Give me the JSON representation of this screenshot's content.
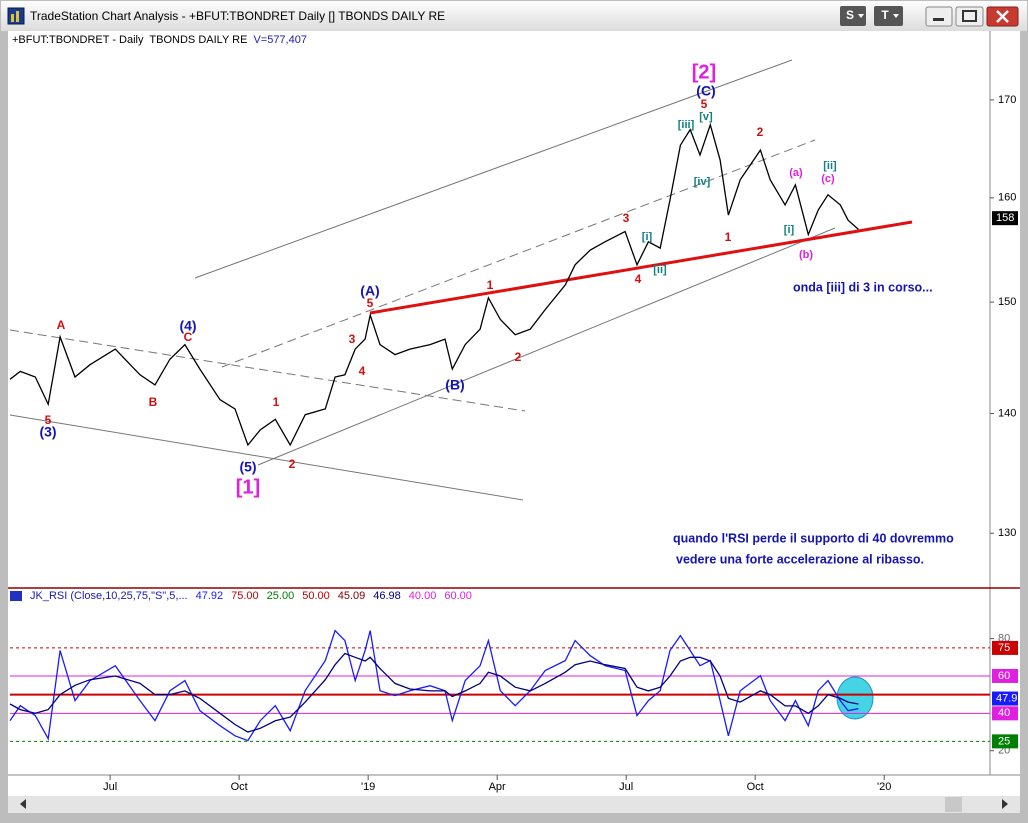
{
  "window": {
    "title": "TradeStation Chart Analysis - +BFUT:TBONDRET Daily [] TBONDS DAILY RE",
    "buttons": [
      "S",
      "T"
    ]
  },
  "chart_data": [
    {
      "type": "line",
      "title": "+BFUT:TBONDRET - Daily  TBONDS DAILY RE",
      "subtitle": "V=577,407",
      "color": "#000000",
      "x": [
        2018.306,
        2018.326,
        2018.355,
        2018.38,
        2018.403,
        2018.432,
        2018.461,
        2018.51,
        2018.558,
        2018.587,
        2018.616,
        2018.645,
        2018.674,
        2018.713,
        2018.742,
        2018.767,
        2018.791,
        2018.82,
        2018.849,
        2018.878,
        2018.917,
        2018.936,
        2018.955,
        2018.975,
        2018.994,
        2019.004,
        2019.023,
        2019.052,
        2019.081,
        2019.12,
        2019.149,
        2019.163,
        2019.188,
        2019.217,
        2019.233,
        2019.256,
        2019.285,
        2019.314,
        2019.343,
        2019.382,
        2019.401,
        2019.43,
        2019.459,
        2019.498,
        2019.521,
        2019.543,
        2019.566,
        2019.585,
        2019.605,
        2019.624,
        2019.643,
        2019.663,
        2019.682,
        2019.698,
        2019.721,
        2019.76,
        2019.779,
        2019.808,
        2019.828,
        2019.853,
        2019.872,
        2019.891,
        2019.915,
        2019.93,
        2019.95
      ],
      "values": [
        143.0,
        143.7,
        143.2,
        140.8,
        146.8,
        143.2,
        144.3,
        145.7,
        143.4,
        142.5,
        144.8,
        146.1,
        143.9,
        141.2,
        140.4,
        137.3,
        138.6,
        139.5,
        137.3,
        139.9,
        140.4,
        143.2,
        143.4,
        145.7,
        146.6,
        148.8,
        146.1,
        145.2,
        145.7,
        146.1,
        146.6,
        143.9,
        146.1,
        147.5,
        150.4,
        148.4,
        147.0,
        147.5,
        149.3,
        151.6,
        153.5,
        154.9,
        155.7,
        156.7,
        153.5,
        155.7,
        155.1,
        159.8,
        165.3,
        166.9,
        164.3,
        167.4,
        163.8,
        158.3,
        161.8,
        164.8,
        161.8,
        159.3,
        161.3,
        156.4,
        158.8,
        160.3,
        159.3,
        157.8,
        156.9
      ],
      "xlim": [
        2018.306,
        2020.205
      ],
      "ylim": [
        125.9,
        177.3
      ],
      "yticks": [
        130,
        140,
        150,
        160,
        170
      ],
      "log_scale": true,
      "last_price": 158,
      "wave_labels": [
        {
          "text": "[2]",
          "color": "#e020e0"
        },
        {
          "text": "(C)",
          "color": "#1414b4"
        },
        {
          "text": "5",
          "color": "#d01010"
        },
        {
          "text": "[v]",
          "color": "#108080"
        },
        {
          "text": "[iii]",
          "color": "#108080"
        },
        {
          "text": "[iv]",
          "color": "#108080"
        },
        {
          "text": "2",
          "color": "#d01010"
        },
        {
          "text": "(a)",
          "color": "#e020e0"
        },
        {
          "text": "[ii]",
          "color": "#108080"
        },
        {
          "text": "(c)",
          "color": "#e020e0"
        },
        {
          "text": "[i]",
          "color": "#108080"
        },
        {
          "text": "(b)",
          "color": "#e020e0"
        },
        {
          "text": "1",
          "color": "#d01010"
        },
        {
          "text": "3",
          "color": "#d01010"
        },
        {
          "text": "[i]",
          "color": "#108080"
        },
        {
          "text": "[ii]",
          "color": "#108080"
        },
        {
          "text": "4",
          "color": "#d01010"
        },
        {
          "text": "1",
          "color": "#d01010"
        },
        {
          "text": "2",
          "color": "#d01010"
        },
        {
          "text": "(A)",
          "color": "#1414b4"
        },
        {
          "text": "5",
          "color": "#d01010"
        },
        {
          "text": "3",
          "color": "#d01010"
        },
        {
          "text": "4",
          "color": "#d01010"
        },
        {
          "text": "(B)",
          "color": "#1414b4"
        },
        {
          "text": "(4)",
          "color": "#1414b4"
        },
        {
          "text": "C",
          "color": "#d01010"
        },
        {
          "text": "A",
          "color": "#d01010"
        },
        {
          "text": "B",
          "color": "#d01010"
        },
        {
          "text": "5",
          "color": "#d01010"
        },
        {
          "text": "(3)",
          "color": "#1414b4"
        },
        {
          "text": "1",
          "color": "#d01010"
        },
        {
          "text": "(5)",
          "color": "#1414b4"
        },
        {
          "text": "2",
          "color": "#d01010"
        },
        {
          "text": "[1]",
          "color": "#e020e0"
        }
      ],
      "notes": [
        "onda [iii] di 3 in corso...",
        "quando l'RSI perde il supporto di 40 dovremmo",
        "vedere una forte accelerazione al ribasso."
      ]
    },
    {
      "type": "line",
      "title": "JK_RSI (Close,10,25,75,\"S\",5,...",
      "readouts": [
        {
          "value": 47.92,
          "color": "#1a1aff"
        },
        {
          "value": 75,
          "label": "75.00",
          "color": "#cc0000",
          "level": "dashed",
          "axis_box": true
        },
        {
          "value": 25,
          "label": "25.00",
          "color": "#008000",
          "level": "dashed",
          "axis_box": true
        },
        {
          "value": 50,
          "label": "50.00",
          "color": "#cc0000",
          "level": "thick"
        },
        {
          "value": 45.09,
          "color": "#800000"
        },
        {
          "value": 46.98,
          "color": "#000080"
        },
        {
          "value": 40,
          "label": "40.00",
          "color": "#e020e0",
          "level": "solid",
          "axis_box": true
        },
        {
          "value": 60,
          "label": "60.00",
          "color": "#e020e0",
          "level": "solid",
          "axis_box": true
        }
      ],
      "x": [
        2018.306,
        2018.326,
        2018.355,
        2018.38,
        2018.403,
        2018.432,
        2018.461,
        2018.51,
        2018.558,
        2018.587,
        2018.616,
        2018.645,
        2018.674,
        2018.713,
        2018.742,
        2018.767,
        2018.791,
        2018.82,
        2018.849,
        2018.878,
        2018.917,
        2018.936,
        2018.955,
        2018.975,
        2018.994,
        2019.004,
        2019.023,
        2019.052,
        2019.081,
        2019.12,
        2019.149,
        2019.163,
        2019.188,
        2019.217,
        2019.233,
        2019.256,
        2019.285,
        2019.314,
        2019.343,
        2019.382,
        2019.401,
        2019.43,
        2019.459,
        2019.498,
        2019.521,
        2019.543,
        2019.566,
        2019.585,
        2019.605,
        2019.624,
        2019.643,
        2019.663,
        2019.682,
        2019.698,
        2019.721,
        2019.76,
        2019.779,
        2019.808,
        2019.828,
        2019.853,
        2019.872,
        2019.891,
        2019.915,
        2019.93,
        2019.95
      ],
      "series": [
        {
          "color": "#1a1aff",
          "values": [
            36.1,
            44.1,
            38.8,
            26.4,
            73.6,
            46.8,
            57.5,
            65.5,
            46.8,
            36.1,
            52.1,
            57.5,
            41.4,
            33.4,
            28.0,
            25.4,
            36.1,
            44.1,
            30.7,
            52.1,
            68.2,
            84.3,
            78.9,
            57.5,
            73.6,
            84.3,
            52.1,
            49.5,
            52.1,
            54.8,
            52.1,
            36.1,
            57.5,
            65.5,
            78.9,
            52.1,
            44.1,
            52.1,
            62.9,
            68.2,
            78.9,
            70.9,
            65.5,
            62.9,
            38.8,
            46.8,
            52.1,
            73.6,
            81.6,
            73.6,
            65.5,
            68.2,
            46.8,
            28.0,
            52.1,
            60.2,
            46.8,
            36.1,
            46.8,
            33.4,
            52.1,
            57.5,
            46.8,
            41.4,
            42.5
          ]
        },
        {
          "color": "#000080",
          "values": [
            45,
            42,
            40,
            42,
            50,
            55,
            58,
            60,
            56,
            50,
            50,
            52,
            48,
            40,
            34,
            30,
            32,
            36,
            38,
            46,
            58,
            66,
            72,
            70,
            68,
            70,
            64,
            56,
            53,
            52,
            52,
            49,
            52,
            56,
            62,
            60,
            54,
            52,
            56,
            62,
            66,
            68,
            66,
            64,
            54,
            52,
            54,
            60,
            68,
            70,
            70,
            68,
            60,
            48,
            46,
            52,
            50,
            44,
            44,
            40,
            44,
            50,
            48,
            46,
            45
          ]
        }
      ],
      "last_value": {
        "value": 47.92,
        "label": "47.9"
      },
      "xlim": [
        2018.306,
        2020.205
      ],
      "ylim": [
        7,
        106
      ],
      "yticks": [
        20,
        80
      ],
      "xticks": [
        {
          "value": 2018.5,
          "label": "Jul"
        },
        {
          "value": 2018.75,
          "label": "Oct"
        },
        {
          "value": 2019,
          "label": "'19"
        },
        {
          "value": 2019.25,
          "label": "Apr"
        },
        {
          "value": 2019.5,
          "label": "Jul"
        },
        {
          "value": 2019.75,
          "label": "Oct"
        },
        {
          "value": 2020,
          "label": "'20"
        }
      ]
    }
  ]
}
